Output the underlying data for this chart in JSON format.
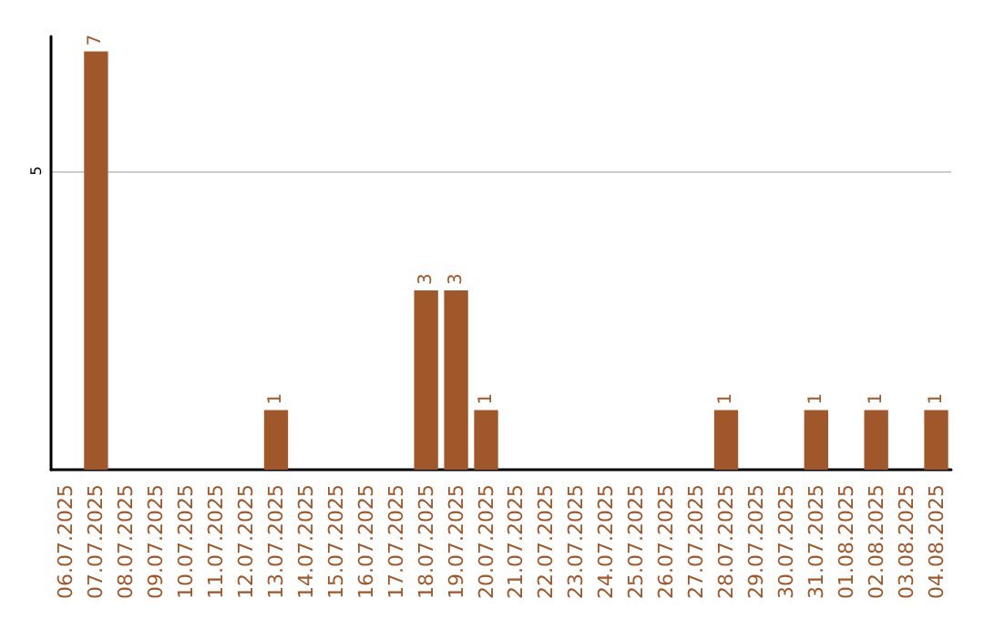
{
  "chart_data": {
    "type": "bar",
    "categories": [
      "06.07.2025",
      "07.07.2025",
      "08.07.2025",
      "09.07.2025",
      "10.07.2025",
      "11.07.2025",
      "12.07.2025",
      "13.07.2025",
      "14.07.2025",
      "15.07.2025",
      "16.07.2025",
      "17.07.2025",
      "18.07.2025",
      "19.07.2025",
      "20.07.2025",
      "21.07.2025",
      "22.07.2025",
      "23.07.2025",
      "24.07.2025",
      "25.07.2025",
      "26.07.2025",
      "27.07.2025",
      "28.07.2025",
      "29.07.2025",
      "30.07.2025",
      "31.07.2025",
      "01.08.2025",
      "02.08.2025",
      "03.08.2025",
      "04.08.2025"
    ],
    "values": [
      0,
      7,
      0,
      0,
      0,
      0,
      0,
      1,
      0,
      0,
      0,
      0,
      3,
      3,
      1,
      0,
      0,
      0,
      0,
      0,
      0,
      0,
      1,
      0,
      0,
      1,
      0,
      1,
      0,
      1
    ],
    "value_labels": [
      null,
      "7",
      null,
      null,
      null,
      null,
      null,
      "1",
      null,
      null,
      null,
      null,
      "3",
      "3",
      "1",
      null,
      null,
      null,
      null,
      null,
      null,
      null,
      "1",
      null,
      null,
      "1",
      null,
      "1",
      null,
      "1"
    ],
    "color": "#a0572a",
    "ylim": [
      0,
      7.25
    ],
    "yticks": [
      5
    ],
    "grid": "y"
  }
}
